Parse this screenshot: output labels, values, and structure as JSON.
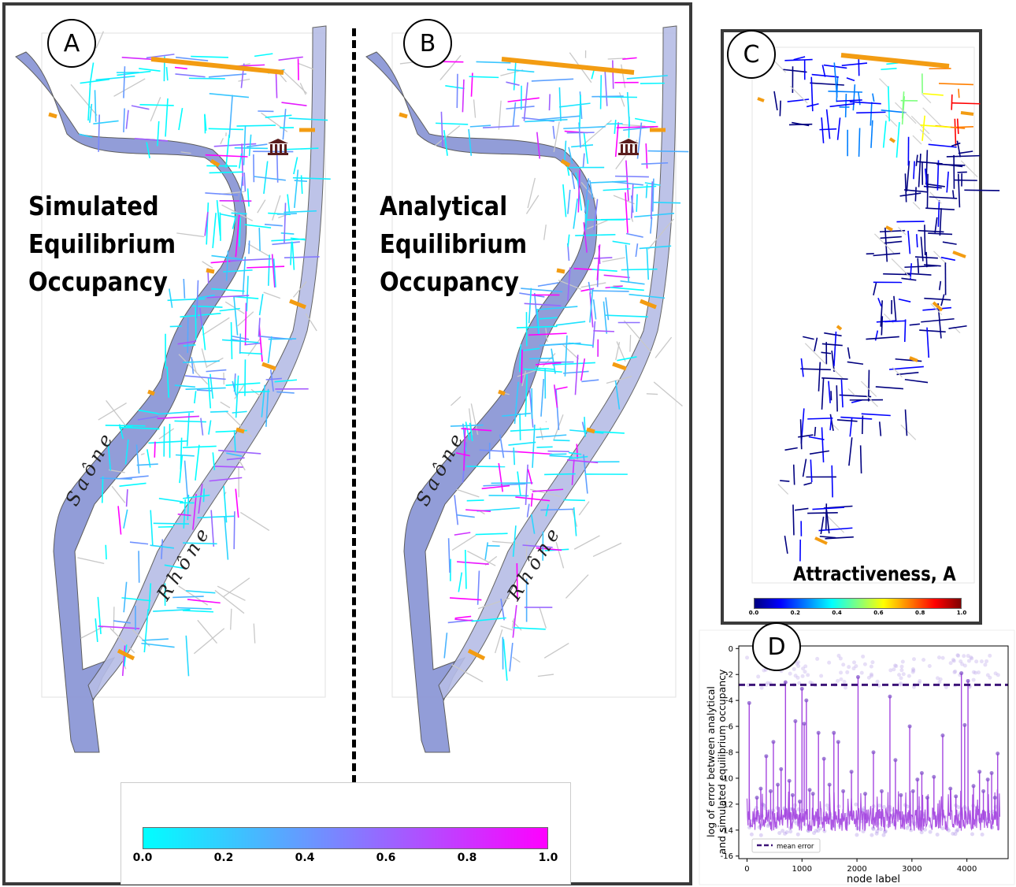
{
  "panels": {
    "a": {
      "letter": "A",
      "title_lines": [
        "Simulated",
        "Equilibrium",
        "Occupancy"
      ]
    },
    "b": {
      "letter": "B",
      "title_lines": [
        "Analytical",
        "Equilibrium",
        "Occupancy"
      ]
    },
    "c": {
      "letter": "C",
      "title": "Attractiveness, A"
    },
    "d": {
      "letter": "D"
    }
  },
  "rivers": {
    "saone": "Saône",
    "rhone": "Rhône"
  },
  "colors": {
    "river": "#8d98d6",
    "bridge": "#f39c12",
    "street_grey": "#c8c8c8",
    "occupancy_low": "#00ffff",
    "occupancy_high": "#ff00ff",
    "error_line": "#a445e0",
    "mean_line": "#3c1478"
  },
  "occupancy_colorbar": {
    "ticks": [
      "0.0",
      "0.2",
      "0.4",
      "0.6",
      "0.8",
      "1.0"
    ]
  },
  "attractiveness_colorbar": {
    "ticks": [
      "0.0",
      "0.2",
      "0.4",
      "0.6",
      "0.8",
      "1.0"
    ]
  },
  "chart_data": {
    "type": "line",
    "title": "",
    "xlabel": "node label",
    "ylabel_lines": [
      "log of error between analytical",
      "and simulated equilibrium occupancy"
    ],
    "xlim": [
      -150,
      4750
    ],
    "ylim": [
      -16.2,
      0.2
    ],
    "xticks": [
      0,
      1000,
      2000,
      3000,
      4000
    ],
    "yticks": [
      0,
      -2,
      -4,
      -6,
      -8,
      -10,
      -12,
      -14,
      -16
    ],
    "grid": false,
    "legend": {
      "position": "lower-left",
      "entries": [
        "mean error"
      ]
    },
    "series": [
      {
        "name": "mean error",
        "style": "dashed",
        "x": [
          -150,
          4750
        ],
        "y": [
          -2.8,
          -2.8
        ]
      }
    ],
    "baseline_level": -13.2,
    "spikes": [
      {
        "x": 40,
        "y": -4.2
      },
      {
        "x": 180,
        "y": -11.5
      },
      {
        "x": 250,
        "y": -10.8
      },
      {
        "x": 350,
        "y": -8.3
      },
      {
        "x": 430,
        "y": -11.0
      },
      {
        "x": 480,
        "y": -7.2
      },
      {
        "x": 560,
        "y": -10.5
      },
      {
        "x": 620,
        "y": -9.3
      },
      {
        "x": 700,
        "y": -2.6
      },
      {
        "x": 770,
        "y": -10.2
      },
      {
        "x": 830,
        "y": -11.3
      },
      {
        "x": 880,
        "y": -5.6
      },
      {
        "x": 960,
        "y": -11.8
      },
      {
        "x": 1000,
        "y": -3.1
      },
      {
        "x": 1040,
        "y": -5.8
      },
      {
        "x": 1080,
        "y": -4.0
      },
      {
        "x": 1140,
        "y": -10.9
      },
      {
        "x": 1200,
        "y": -11.2
      },
      {
        "x": 1300,
        "y": -6.5
      },
      {
        "x": 1400,
        "y": -8.5
      },
      {
        "x": 1500,
        "y": -10.5
      },
      {
        "x": 1580,
        "y": -6.5
      },
      {
        "x": 1660,
        "y": -7.2
      },
      {
        "x": 1750,
        "y": -11.0
      },
      {
        "x": 1900,
        "y": -9.5
      },
      {
        "x": 2020,
        "y": -2.2
      },
      {
        "x": 2150,
        "y": -11.2
      },
      {
        "x": 2300,
        "y": -8.0
      },
      {
        "x": 2450,
        "y": -11.0
      },
      {
        "x": 2600,
        "y": -3.7
      },
      {
        "x": 2700,
        "y": -8.6
      },
      {
        "x": 2800,
        "y": -11.3
      },
      {
        "x": 2960,
        "y": -6.0
      },
      {
        "x": 3020,
        "y": -11.0
      },
      {
        "x": 3100,
        "y": -10.1
      },
      {
        "x": 3180,
        "y": -9.6
      },
      {
        "x": 3280,
        "y": -11.5
      },
      {
        "x": 3400,
        "y": -9.9
      },
      {
        "x": 3560,
        "y": -6.7
      },
      {
        "x": 3700,
        "y": -10.8
      },
      {
        "x": 3800,
        "y": -11.4
      },
      {
        "x": 3900,
        "y": -1.9
      },
      {
        "x": 3960,
        "y": -5.9
      },
      {
        "x": 4020,
        "y": -2.5
      },
      {
        "x": 4120,
        "y": -10.6
      },
      {
        "x": 4230,
        "y": -9.5
      },
      {
        "x": 4300,
        "y": -11.0
      },
      {
        "x": 4380,
        "y": -10.1
      },
      {
        "x": 4450,
        "y": -9.6
      },
      {
        "x": 4510,
        "y": -11.5
      },
      {
        "x": 4560,
        "y": -8.1
      }
    ]
  }
}
